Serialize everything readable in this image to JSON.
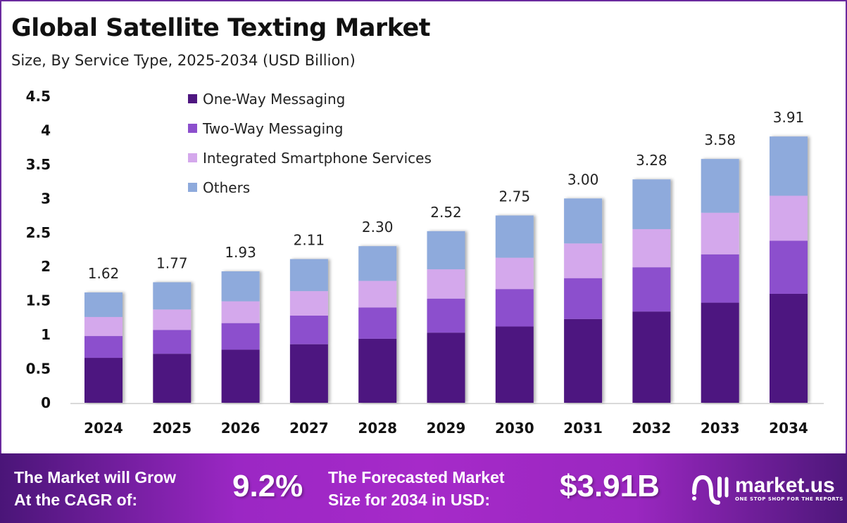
{
  "chart_data": {
    "type": "bar",
    "stacked": true,
    "title": "Global Satellite Texting Market",
    "subtitle": "Size, By Service Type, 2025-2034 (USD Billion)",
    "categories": [
      "2024",
      "2025",
      "2026",
      "2027",
      "2028",
      "2029",
      "2030",
      "2031",
      "2032",
      "2033",
      "2034"
    ],
    "series": [
      {
        "name": "One-Way Messaging",
        "color": "#4e1680",
        "values": [
          0.66,
          0.72,
          0.78,
          0.86,
          0.94,
          1.03,
          1.12,
          1.23,
          1.34,
          1.47,
          1.6
        ]
      },
      {
        "name": "Two-Way Messaging",
        "color": "#8c4fcd",
        "values": [
          0.32,
          0.35,
          0.39,
          0.42,
          0.46,
          0.5,
          0.55,
          0.6,
          0.65,
          0.71,
          0.78
        ]
      },
      {
        "name": "Integrated Smartphone Services",
        "color": "#d4a8ec",
        "values": [
          0.28,
          0.3,
          0.32,
          0.36,
          0.39,
          0.43,
          0.46,
          0.51,
          0.56,
          0.61,
          0.66
        ]
      },
      {
        "name": "Others",
        "color": "#8eaadc",
        "values": [
          0.36,
          0.4,
          0.44,
          0.47,
          0.51,
          0.56,
          0.62,
          0.66,
          0.73,
          0.79,
          0.87
        ]
      }
    ],
    "totals": [
      "1.62",
      "1.77",
      "1.93",
      "2.11",
      "2.30",
      "2.52",
      "2.75",
      "3.00",
      "3.28",
      "3.58",
      "3.91"
    ],
    "yticks": [
      "0",
      "0.5",
      "1",
      "1.5",
      "2",
      "2.5",
      "3",
      "3.5",
      "4",
      "4.5"
    ],
    "ylim": [
      0,
      4.5
    ],
    "grid": false,
    "legend_position": "top-left"
  },
  "footer": {
    "cagr_label": [
      "The Market will Grow",
      "At the CAGR of:"
    ],
    "cagr_value": "9.2%",
    "forecast_label": [
      "The Forecasted Market",
      "Size for 2034 in USD:"
    ],
    "forecast_value": "$3.91B",
    "logo_name": "market.us",
    "logo_tagline": "ONE STOP SHOP FOR THE REPORTS"
  }
}
